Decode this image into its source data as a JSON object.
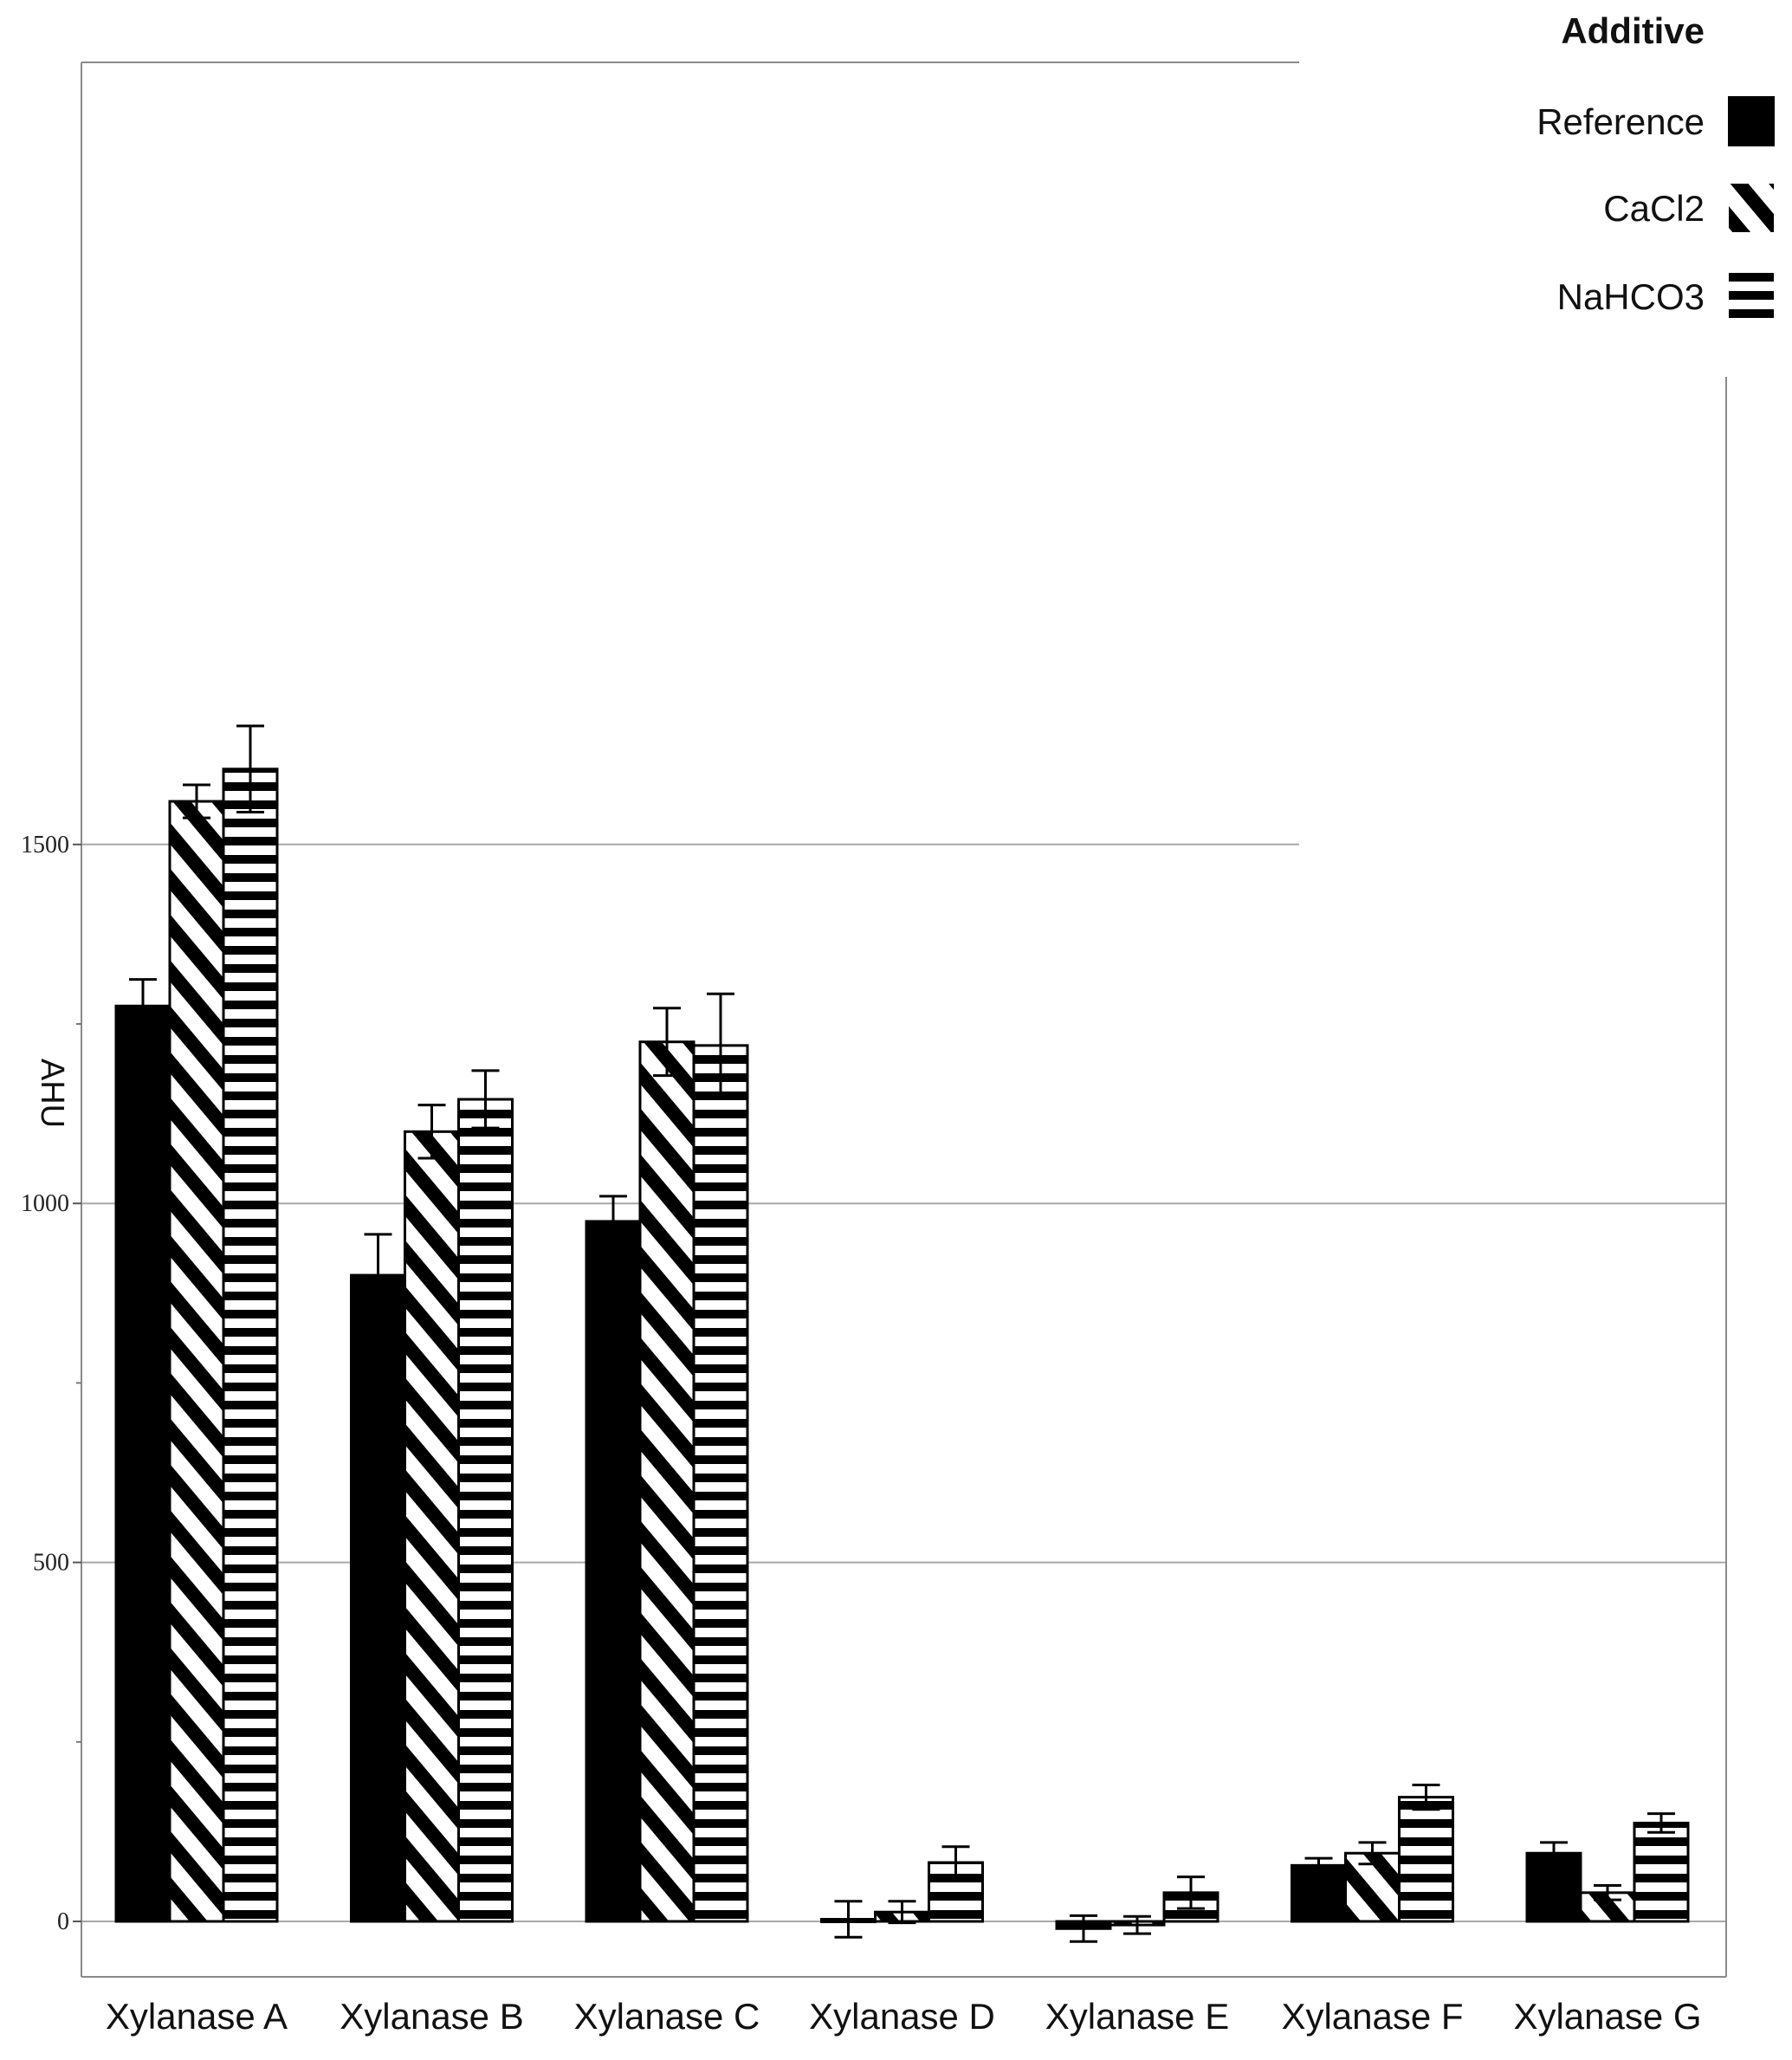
{
  "chart_data": {
    "type": "bar",
    "title": "",
    "xlabel": "",
    "ylabel": "AHU",
    "ylim": [
      -50,
      1700
    ],
    "yticks": [
      0,
      500,
      1000,
      1500
    ],
    "ytick_labels": [
      "0",
      "500",
      "1000",
      "1500"
    ],
    "minor_yticks": [
      250,
      750,
      1250
    ],
    "grid": "horizontal",
    "categories": [
      "Xylanase A",
      "Xylanase B",
      "Xylanase C",
      "Xylanase D",
      "Xylanase E",
      "Xylanase F",
      "Xylanase G"
    ],
    "legend": {
      "title": "Additive",
      "placement": "top-right"
    },
    "series": [
      {
        "name": "Reference",
        "pattern": "solid",
        "color": "#000000",
        "values": [
          1275,
          900,
          975,
          3,
          -10,
          78,
          95
        ],
        "errors": [
          37,
          57,
          35,
          25,
          18,
          10,
          15
        ]
      },
      {
        "name": "CaCl2",
        "pattern": "diagonal",
        "color": "#000000",
        "values": [
          1560,
          1100,
          1225,
          13,
          -5,
          95,
          40
        ],
        "errors": [
          23,
          37,
          47,
          15,
          12,
          15,
          10
        ]
      },
      {
        "name": "NaHCO3",
        "pattern": "horizontal",
        "color": "#000000",
        "values": [
          1605,
          1145,
          1220,
          82,
          40,
          173,
          137
        ],
        "errors": [
          60,
          40,
          72,
          22,
          22,
          17,
          13
        ]
      }
    ]
  }
}
